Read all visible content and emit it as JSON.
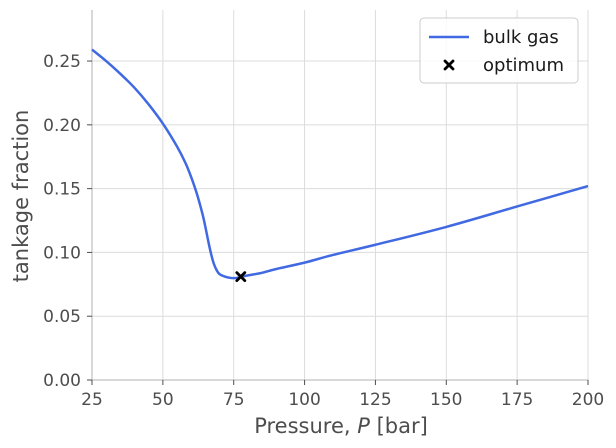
{
  "chart_data": {
    "type": "line",
    "xlabel_prefix": "Pressure, ",
    "xlabel_var": "P",
    "xlabel_suffix": " [bar]",
    "ylabel": "tankage fraction",
    "xlim": [
      25,
      200
    ],
    "ylim": [
      0,
      0.29
    ],
    "xticks": [
      25,
      50,
      75,
      100,
      125,
      150,
      175,
      200
    ],
    "yticks": [
      0.0,
      0.05,
      0.1,
      0.15,
      0.2,
      0.25
    ],
    "ytick_labels": [
      "0.00",
      "0.05",
      "0.10",
      "0.15",
      "0.20",
      "0.25"
    ],
    "grid": true,
    "legend_position": "top-right",
    "series": [
      {
        "name": "bulk gas",
        "color": "#4169e1",
        "x": [
          25,
          30,
          35,
          40,
          45,
          50,
          55,
          58,
          60,
          62,
          64,
          65,
          66,
          67,
          68,
          69,
          70,
          72,
          74,
          76,
          78,
          80,
          85,
          90,
          100,
          110,
          125,
          150,
          175,
          200
        ],
        "y": [
          0.259,
          0.25,
          0.24,
          0.229,
          0.216,
          0.201,
          0.183,
          0.17,
          0.159,
          0.146,
          0.13,
          0.12,
          0.109,
          0.099,
          0.091,
          0.086,
          0.083,
          0.081,
          0.08,
          0.08,
          0.081,
          0.082,
          0.084,
          0.087,
          0.092,
          0.098,
          0.106,
          0.12,
          0.136,
          0.152
        ]
      }
    ],
    "markers": [
      {
        "name": "optimum",
        "symbol": "x",
        "color": "#000000",
        "x": 77.5,
        "y": 0.081
      }
    ]
  }
}
